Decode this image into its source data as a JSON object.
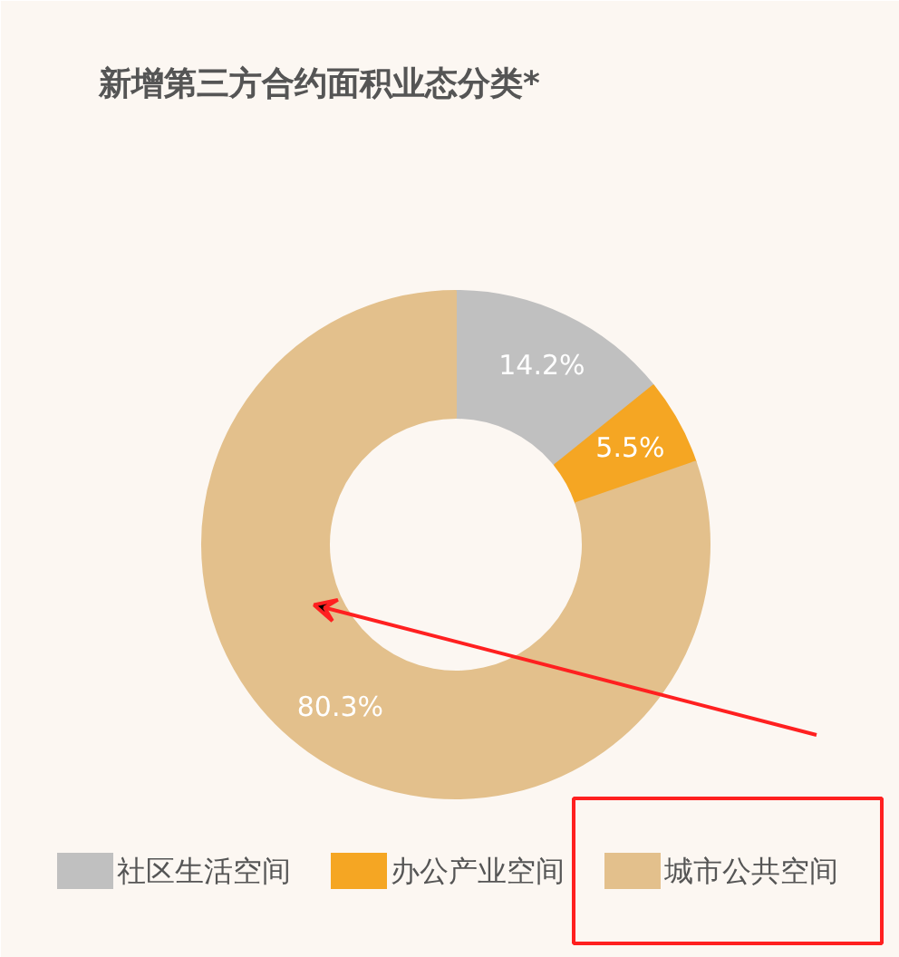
{
  "chart_data": {
    "type": "donut",
    "title": "新增第三方合约面积业态分类*",
    "categories": [
      "社区生活空间",
      "办公产业空间",
      "城市公共空间"
    ],
    "values": [
      14.2,
      5.5,
      80.3
    ],
    "colors": [
      "#c0c0c0",
      "#f5a623",
      "#e3c08c"
    ],
    "value_labels": [
      "14.2%",
      "5.5%",
      "80.3%"
    ],
    "legend": "bottom"
  }
}
